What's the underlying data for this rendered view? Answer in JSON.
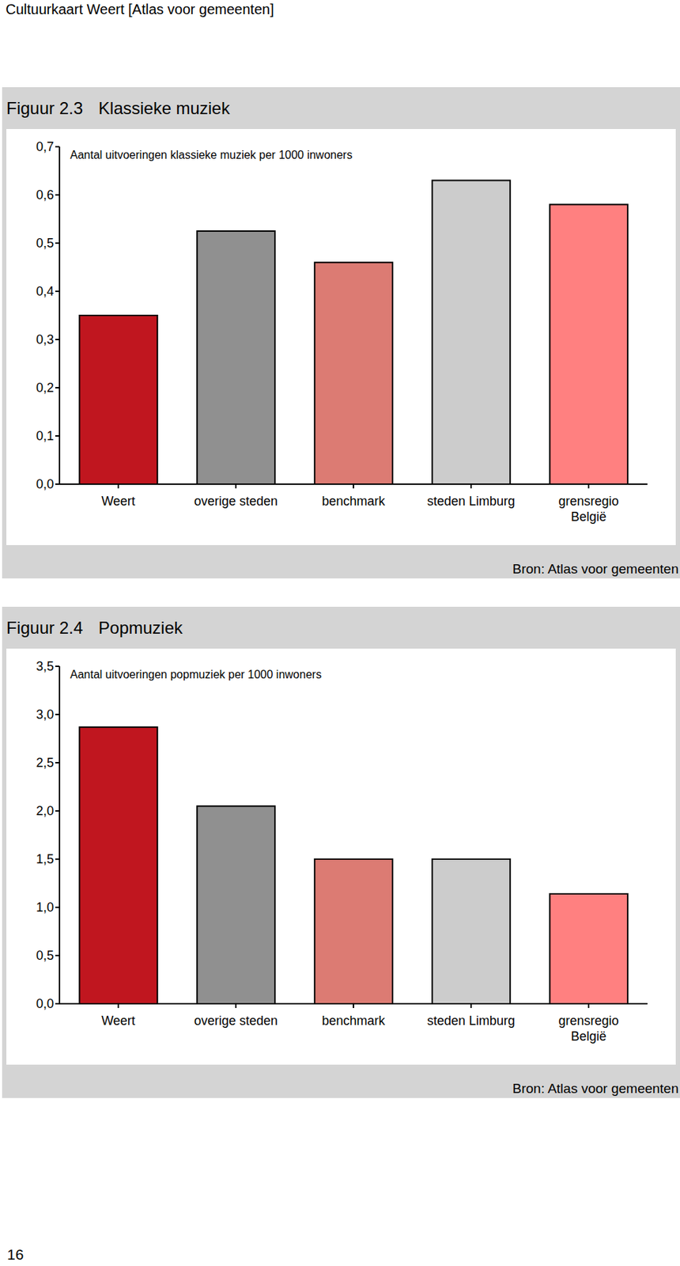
{
  "header": "Cultuurkaart Weert [Atlas voor gemeenten]",
  "page_number": 16,
  "chart_data": [
    {
      "type": "bar",
      "figure": "Figuur 2.3",
      "title": "Klassieke muziek",
      "annotation": "Aantal uitvoeringen klassieke muziek per 1000 inwoners",
      "source": "Bron: Atlas voor gemeenten",
      "categories": [
        "Weert",
        "overige steden",
        "benchmark",
        "steden Limburg",
        "grensregio België"
      ],
      "values": [
        0.35,
        0.525,
        0.46,
        0.63,
        0.58
      ],
      "colors": [
        "#c0161f",
        "#909090",
        "#dc7b73",
        "#cccccc",
        "#ff8080"
      ],
      "ylim": [
        0,
        0.7
      ],
      "yticks": [
        {
          "value": 0,
          "label": "0,0"
        },
        {
          "value": 0.1,
          "label": "0,1"
        },
        {
          "value": 0.2,
          "label": "0,2"
        },
        {
          "value": 0.3,
          "label": "0,3"
        },
        {
          "value": 0.4,
          "label": "0,4"
        },
        {
          "value": 0.5,
          "label": "0,5"
        },
        {
          "value": 0.6,
          "label": "0,6"
        },
        {
          "value": 0.7,
          "label": "0,7"
        }
      ],
      "grid": false
    },
    {
      "type": "bar",
      "figure": "Figuur 2.4",
      "title": "Popmuziek",
      "annotation": "Aantal uitvoeringen popmuziek per 1000 inwoners",
      "source": "Bron: Atlas voor gemeenten",
      "categories": [
        "Weert",
        "overige steden",
        "benchmark",
        "steden Limburg",
        "grensregio België"
      ],
      "values": [
        2.87,
        2.05,
        1.5,
        1.5,
        1.14
      ],
      "colors": [
        "#c0161f",
        "#909090",
        "#dc7b73",
        "#cccccc",
        "#ff8080"
      ],
      "ylim": [
        0,
        3.5
      ],
      "yticks": [
        {
          "value": 0,
          "label": "0,0"
        },
        {
          "value": 0.5,
          "label": "0,5"
        },
        {
          "value": 1,
          "label": "1,0"
        },
        {
          "value": 1.5,
          "label": "1,5"
        },
        {
          "value": 2,
          "label": "2,0"
        },
        {
          "value": 2.5,
          "label": "2,5"
        },
        {
          "value": 3,
          "label": "3,0"
        },
        {
          "value": 3.5,
          "label": "3,5"
        }
      ],
      "grid": false
    }
  ]
}
